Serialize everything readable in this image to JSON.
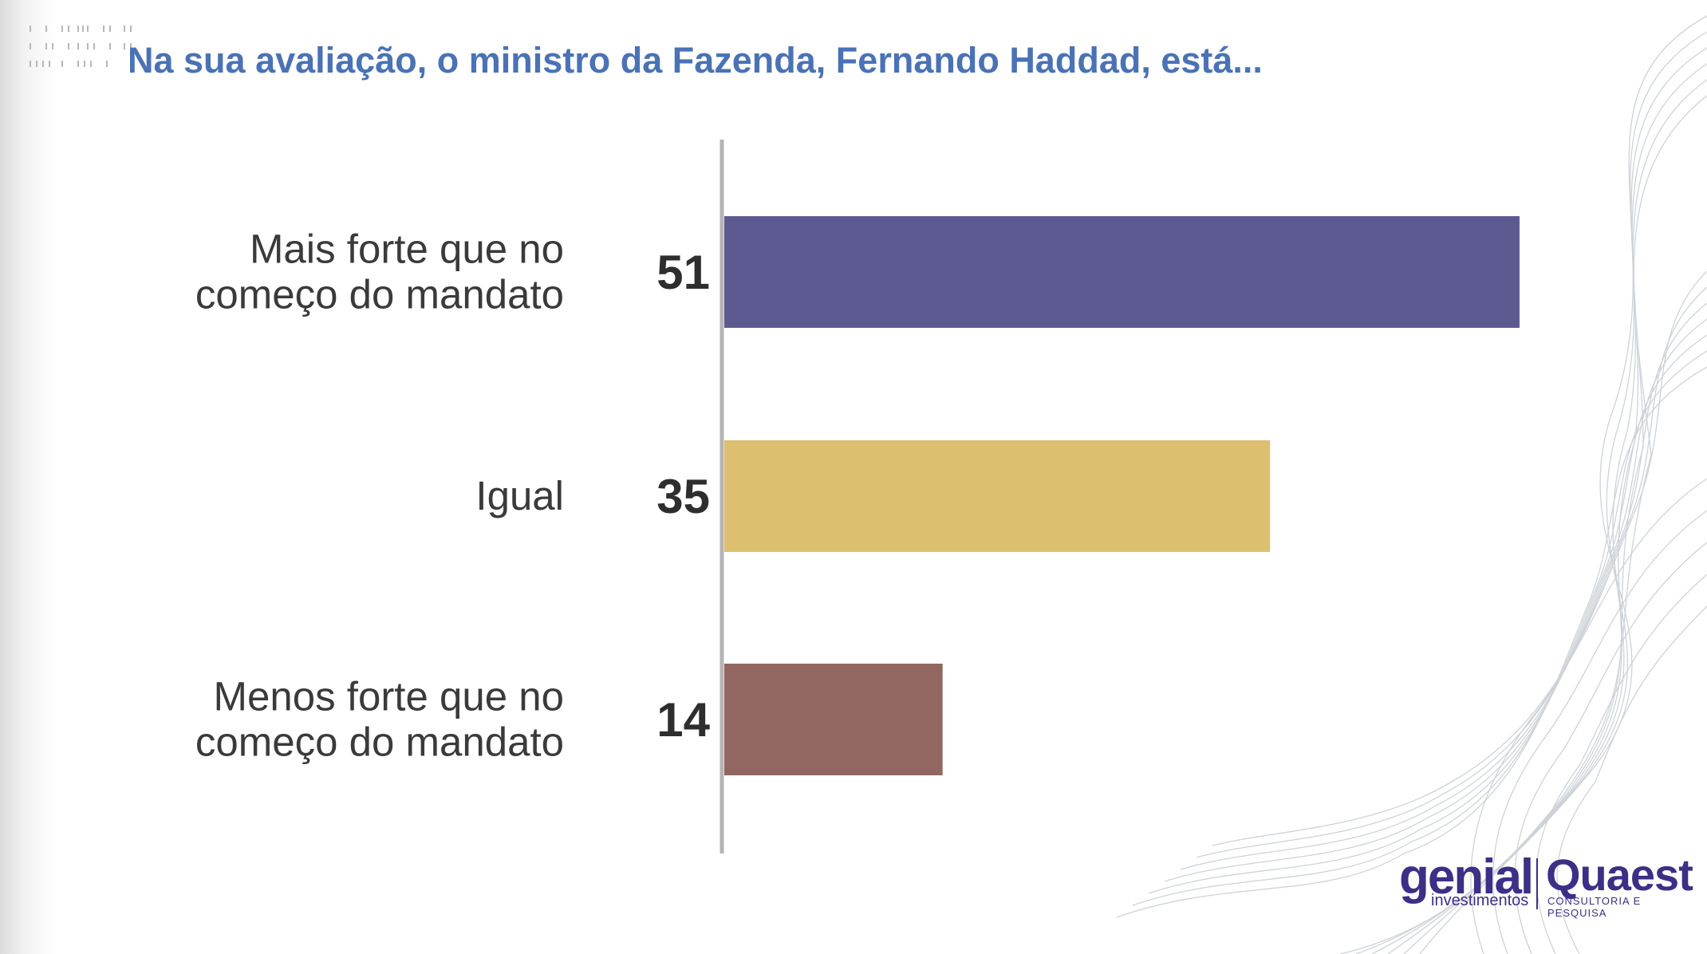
{
  "title": "Na sua avaliação, o ministro da Fazenda, Fernando Haddad, está...",
  "chart_data": {
    "type": "bar",
    "orientation": "horizontal",
    "title": "Na sua avaliação, o ministro da Fazenda, Fernando Haddad, está...",
    "categories": [
      [
        "Mais forte que no",
        "começo do mandato"
      ],
      [
        "Igual"
      ],
      [
        "Menos forte que no",
        "começo do mandato"
      ]
    ],
    "values": [
      51,
      35,
      14
    ],
    "colors": [
      "#5d5a92",
      "#dcc06f",
      "#926661"
    ],
    "xlim": [
      0,
      51
    ],
    "grid": false,
    "legend": "none"
  },
  "logo": {
    "brand1": "genial",
    "brand1_sub": "investimentos",
    "brand2": "Quaest",
    "brand2_sub": "CONSULTORIA E PESQUISA"
  },
  "accent_color": "#4a72b5"
}
